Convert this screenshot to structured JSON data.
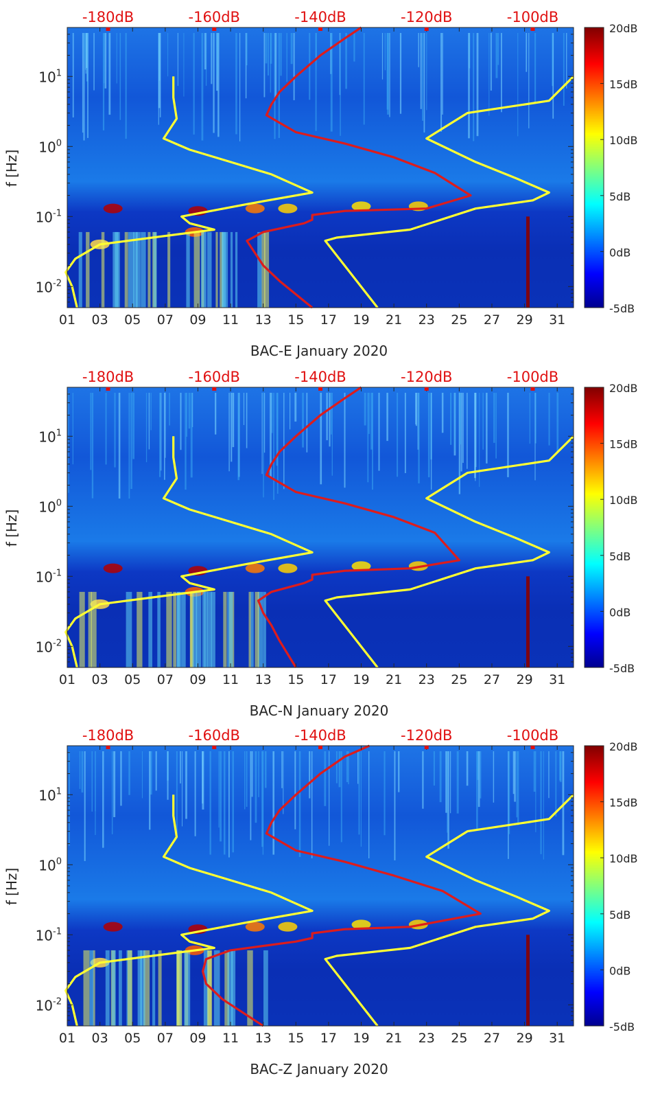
{
  "figure": {
    "colors": {
      "noise_min_line": "#ffff33",
      "noise_max_line": "#ffff33",
      "reference_line": "#dd1c1c",
      "top_axis_label": "#e01010",
      "axis_text": "#262626"
    },
    "colormap": "jet",
    "colorbar": {
      "ticks": [
        "20dB",
        "15dB",
        "10dB",
        "5dB",
        "0dB",
        "-5dB"
      ],
      "range_db": [
        -5,
        20
      ]
    }
  },
  "chart_data": [
    {
      "type": "heatmap",
      "title": "",
      "xlabel": "BAC-E January 2020",
      "ylabel": "f [Hz]",
      "xlim_day": [
        1,
        32
      ],
      "ylim_hz": [
        0.005,
        50
      ],
      "yscale": "log",
      "x_ticks": [
        "01",
        "03",
        "05",
        "07",
        "09",
        "11",
        "13",
        "15",
        "17",
        "19",
        "21",
        "23",
        "25",
        "27",
        "29",
        "31"
      ],
      "y_ticks": [
        {
          "value": 10,
          "base": "10",
          "exp": "1"
        },
        {
          "value": 1,
          "base": "10",
          "exp": "0"
        },
        {
          "value": 0.1,
          "base": "10",
          "exp": "-1"
        },
        {
          "value": 0.01,
          "base": "10",
          "exp": "-2"
        }
      ],
      "top_axis_labels": [
        "-180dB",
        "-160dB",
        "-140dB",
        "-120dB",
        "-100dB"
      ],
      "top_axis_positions_day": [
        3.5,
        10,
        16.5,
        23,
        29.5
      ],
      "series": [
        {
          "name": "noise-model-low",
          "points": [
            [
              7.5,
              10
            ],
            [
              7.5,
              5
            ],
            [
              7.7,
              2.5
            ],
            [
              6.9,
              1.3
            ],
            [
              8.5,
              0.9
            ],
            [
              11,
              0.6
            ],
            [
              13.5,
              0.4
            ],
            [
              16,
              0.22
            ],
            [
              12,
              0.15
            ],
            [
              8,
              0.1
            ],
            [
              8.5,
              0.08
            ],
            [
              10,
              0.065
            ],
            [
              3,
              0.04
            ],
            [
              1.5,
              0.025
            ],
            [
              0.9,
              0.016
            ],
            [
              1.3,
              0.01
            ],
            [
              1.6,
              0.005
            ]
          ]
        },
        {
          "name": "noise-model-high",
          "points": [
            [
              32,
              10
            ],
            [
              30.5,
              4.5
            ],
            [
              25.5,
              3
            ],
            [
              23,
              1.3
            ],
            [
              26,
              0.6
            ],
            [
              28.5,
              0.35
            ],
            [
              30.5,
              0.22
            ],
            [
              29.5,
              0.17
            ],
            [
              26,
              0.13
            ],
            [
              22,
              0.065
            ],
            [
              17.5,
              0.05
            ],
            [
              16.8,
              0.045
            ],
            [
              20,
              0.005
            ]
          ]
        },
        {
          "name": "station-reference",
          "points": [
            [
              19,
              50
            ],
            [
              18,
              35
            ],
            [
              16.5,
              20
            ],
            [
              15,
              10
            ],
            [
              14,
              6
            ],
            [
              13.5,
              4
            ],
            [
              13.2,
              2.8
            ],
            [
              15,
              1.6
            ],
            [
              18,
              1.1
            ],
            [
              21,
              0.7
            ],
            [
              23.5,
              0.42
            ],
            [
              25.7,
              0.2
            ],
            [
              23,
              0.13
            ],
            [
              18,
              0.12
            ],
            [
              16,
              0.105
            ],
            [
              16,
              0.09
            ],
            [
              15.5,
              0.08
            ],
            [
              13,
              0.06
            ],
            [
              12,
              0.045
            ],
            [
              12.5,
              0.03
            ],
            [
              13,
              0.02
            ],
            [
              14,
              0.012
            ],
            [
              16,
              0.005
            ]
          ]
        }
      ]
    },
    {
      "type": "heatmap",
      "title": "",
      "xlabel": "BAC-N January 2020",
      "ylabel": "f [Hz]",
      "xlim_day": [
        1,
        32
      ],
      "ylim_hz": [
        0.005,
        50
      ],
      "yscale": "log",
      "x_ticks": [
        "01",
        "03",
        "05",
        "07",
        "09",
        "11",
        "13",
        "15",
        "17",
        "19",
        "21",
        "23",
        "25",
        "27",
        "29",
        "31"
      ],
      "y_ticks": [
        {
          "value": 10,
          "base": "10",
          "exp": "1"
        },
        {
          "value": 1,
          "base": "10",
          "exp": "0"
        },
        {
          "value": 0.1,
          "base": "10",
          "exp": "-1"
        },
        {
          "value": 0.01,
          "base": "10",
          "exp": "-2"
        }
      ],
      "top_axis_labels": [
        "-180dB",
        "-160dB",
        "-140dB",
        "-120dB",
        "-100dB"
      ],
      "top_axis_positions_day": [
        3.5,
        10,
        16.5,
        23,
        29.5
      ],
      "series": [
        {
          "name": "noise-model-low",
          "points": [
            [
              7.5,
              10
            ],
            [
              7.5,
              5
            ],
            [
              7.7,
              2.5
            ],
            [
              6.9,
              1.3
            ],
            [
              8.5,
              0.9
            ],
            [
              11,
              0.6
            ],
            [
              13.5,
              0.4
            ],
            [
              16,
              0.22
            ],
            [
              12,
              0.15
            ],
            [
              8,
              0.1
            ],
            [
              8.5,
              0.08
            ],
            [
              10,
              0.065
            ],
            [
              3,
              0.04
            ],
            [
              1.5,
              0.025
            ],
            [
              0.9,
              0.016
            ],
            [
              1.3,
              0.01
            ],
            [
              1.6,
              0.005
            ]
          ]
        },
        {
          "name": "noise-model-high",
          "points": [
            [
              32,
              10
            ],
            [
              30.5,
              4.5
            ],
            [
              25.5,
              3
            ],
            [
              23,
              1.3
            ],
            [
              26,
              0.6
            ],
            [
              28.5,
              0.35
            ],
            [
              30.5,
              0.22
            ],
            [
              29.5,
              0.17
            ],
            [
              26,
              0.13
            ],
            [
              22,
              0.065
            ],
            [
              17.5,
              0.05
            ],
            [
              16.8,
              0.045
            ],
            [
              20,
              0.005
            ]
          ]
        },
        {
          "name": "station-reference",
          "points": [
            [
              19,
              50
            ],
            [
              18,
              35
            ],
            [
              16.5,
              20
            ],
            [
              15,
              10
            ],
            [
              14,
              6
            ],
            [
              13.5,
              4
            ],
            [
              13.2,
              2.8
            ],
            [
              15,
              1.6
            ],
            [
              18,
              1.1
            ],
            [
              21,
              0.7
            ],
            [
              23.5,
              0.42
            ],
            [
              25,
              0.17
            ],
            [
              22,
              0.13
            ],
            [
              18,
              0.12
            ],
            [
              16,
              0.105
            ],
            [
              16,
              0.09
            ],
            [
              15.5,
              0.08
            ],
            [
              13.5,
              0.06
            ],
            [
              12.7,
              0.045
            ],
            [
              13,
              0.03
            ],
            [
              13.5,
              0.02
            ],
            [
              14,
              0.012
            ],
            [
              15,
              0.005
            ]
          ]
        }
      ]
    },
    {
      "type": "heatmap",
      "title": "",
      "xlabel": "BAC-Z January 2020",
      "ylabel": "f [Hz]",
      "xlim_day": [
        1,
        32
      ],
      "ylim_hz": [
        0.005,
        50
      ],
      "yscale": "log",
      "x_ticks": [
        "01",
        "03",
        "05",
        "07",
        "09",
        "11",
        "13",
        "15",
        "17",
        "19",
        "21",
        "23",
        "25",
        "27",
        "29",
        "31"
      ],
      "y_ticks": [
        {
          "value": 10,
          "base": "10",
          "exp": "1"
        },
        {
          "value": 1,
          "base": "10",
          "exp": "0"
        },
        {
          "value": 0.1,
          "base": "10",
          "exp": "-1"
        },
        {
          "value": 0.01,
          "base": "10",
          "exp": "-2"
        }
      ],
      "top_axis_labels": [
        "-180dB",
        "-160dB",
        "-140dB",
        "-120dB",
        "-100dB"
      ],
      "top_axis_positions_day": [
        3.5,
        10,
        16.5,
        23,
        29.5
      ],
      "series": [
        {
          "name": "noise-model-low",
          "points": [
            [
              7.5,
              10
            ],
            [
              7.5,
              5
            ],
            [
              7.7,
              2.5
            ],
            [
              6.9,
              1.3
            ],
            [
              8.5,
              0.9
            ],
            [
              11,
              0.6
            ],
            [
              13.5,
              0.4
            ],
            [
              16,
              0.22
            ],
            [
              12,
              0.15
            ],
            [
              8,
              0.1
            ],
            [
              8.5,
              0.08
            ],
            [
              10,
              0.065
            ],
            [
              3,
              0.04
            ],
            [
              1.5,
              0.025
            ],
            [
              0.9,
              0.016
            ],
            [
              1.3,
              0.01
            ],
            [
              1.6,
              0.005
            ]
          ]
        },
        {
          "name": "noise-model-high",
          "points": [
            [
              32,
              10
            ],
            [
              30.5,
              4.5
            ],
            [
              25.5,
              3
            ],
            [
              23,
              1.3
            ],
            [
              26,
              0.6
            ],
            [
              28.5,
              0.35
            ],
            [
              30.5,
              0.22
            ],
            [
              29.5,
              0.17
            ],
            [
              26,
              0.13
            ],
            [
              22,
              0.065
            ],
            [
              17.5,
              0.05
            ],
            [
              16.8,
              0.045
            ],
            [
              20,
              0.005
            ]
          ]
        },
        {
          "name": "station-reference",
          "points": [
            [
              19.5,
              50
            ],
            [
              18,
              35
            ],
            [
              16.5,
              20
            ],
            [
              15,
              10
            ],
            [
              14,
              6
            ],
            [
              13.5,
              4
            ],
            [
              13.2,
              2.8
            ],
            [
              15,
              1.6
            ],
            [
              18,
              1.1
            ],
            [
              21,
              0.7
            ],
            [
              24,
              0.42
            ],
            [
              26.3,
              0.2
            ],
            [
              22,
              0.13
            ],
            [
              18,
              0.12
            ],
            [
              16,
              0.105
            ],
            [
              16,
              0.09
            ],
            [
              15,
              0.08
            ],
            [
              11,
              0.06
            ],
            [
              9.5,
              0.045
            ],
            [
              9.3,
              0.03
            ],
            [
              9.5,
              0.02
            ],
            [
              10.5,
              0.012
            ],
            [
              13,
              0.005
            ]
          ]
        }
      ]
    }
  ]
}
